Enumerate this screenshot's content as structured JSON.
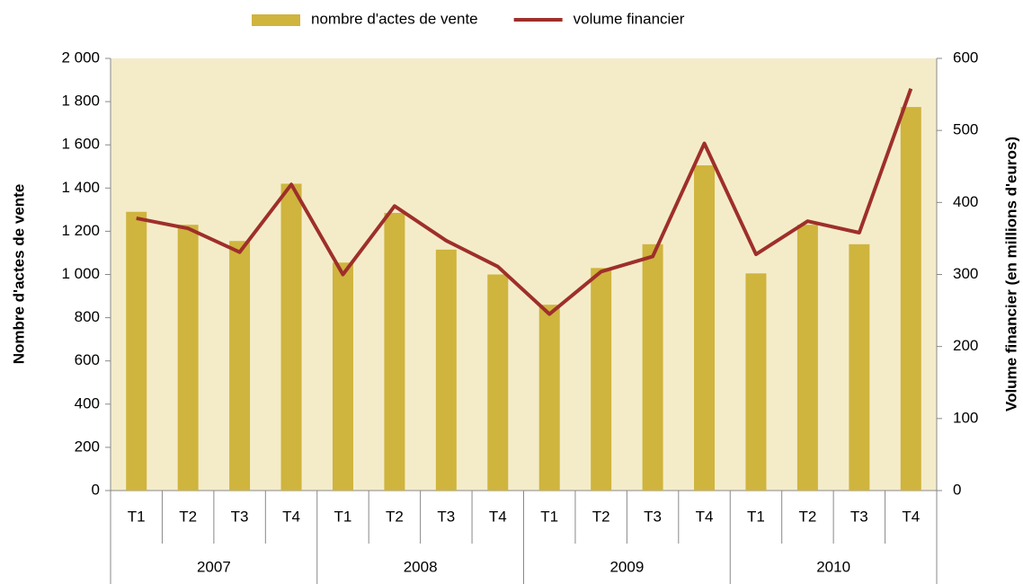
{
  "chart_data": {
    "type": "bar_line",
    "categories": [
      "T1",
      "T2",
      "T3",
      "T4",
      "T1",
      "T2",
      "T3",
      "T4",
      "T1",
      "T2",
      "T3",
      "T4",
      "T1",
      "T2",
      "T3",
      "T4"
    ],
    "groups": [
      "2007",
      "2008",
      "2009",
      "2010"
    ],
    "series": [
      {
        "name": "nombre d'actes de vente",
        "type": "bar",
        "color": "#cfb43e",
        "values": [
          1290,
          1230,
          1155,
          1420,
          1055,
          1285,
          1115,
          1000,
          860,
          1030,
          1140,
          1505,
          1005,
          1230,
          1140,
          1775
        ]
      },
      {
        "name": "volume financier",
        "type": "line",
        "axis": "y2",
        "color": "#9e2f2a",
        "values": [
          378,
          364,
          331,
          425,
          300,
          395,
          347,
          311,
          245,
          304,
          325,
          482,
          328,
          374,
          358,
          558
        ]
      }
    ],
    "ylabel": "Nombre d'actes de vente",
    "y2label": "Volume financier  (en millions d'euros)",
    "ylim": [
      0,
      2000
    ],
    "yticks": [
      0,
      200,
      400,
      600,
      800,
      {
        "value": 1000,
        "label": "1 000"
      },
      {
        "value": 1200,
        "label": "1 200"
      },
      {
        "value": 1400,
        "label": "1 400"
      },
      {
        "value": 1600,
        "label": "1 600"
      },
      {
        "value": 1800,
        "label": "1 800"
      },
      {
        "value": 2000,
        "label": "2 000"
      }
    ],
    "y2lim": [
      0,
      600
    ],
    "y2ticks": [
      0,
      100,
      200,
      300,
      400,
      500,
      600
    ],
    "legend": "top"
  }
}
